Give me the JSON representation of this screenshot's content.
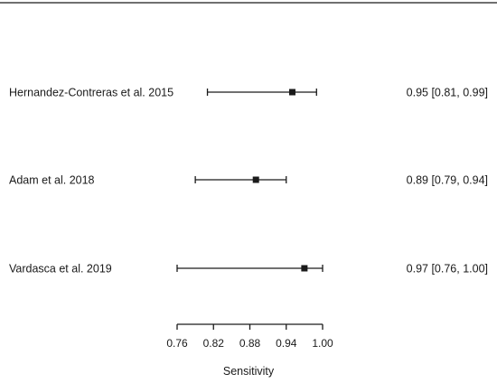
{
  "chart_data": {
    "type": "forest",
    "title": "",
    "xlabel": "Sensitivity",
    "ylabel": "",
    "xlim": [
      0.76,
      1.0
    ],
    "xticks": [
      0.76,
      0.82,
      0.88,
      0.94,
      1.0
    ],
    "xtick_labels": [
      "0.76",
      "0.82",
      "0.88",
      "0.94",
      "1.00"
    ],
    "grid": false,
    "studies": [
      {
        "label": "Hernandez-Contreras et al. 2015",
        "estimate": 0.95,
        "lower": 0.81,
        "upper": 0.99,
        "ci_text": "0.95 [0.81, 0.99]"
      },
      {
        "label": "Adam et al. 2018",
        "estimate": 0.89,
        "lower": 0.79,
        "upper": 0.94,
        "ci_text": "0.89 [0.79, 0.94]"
      },
      {
        "label": "Vardasca et al. 2019",
        "estimate": 0.97,
        "lower": 0.76,
        "upper": 1.0,
        "ci_text": "0.97 [0.76, 1.00]"
      }
    ],
    "colors": {
      "ink": "#1a1a1a"
    }
  }
}
